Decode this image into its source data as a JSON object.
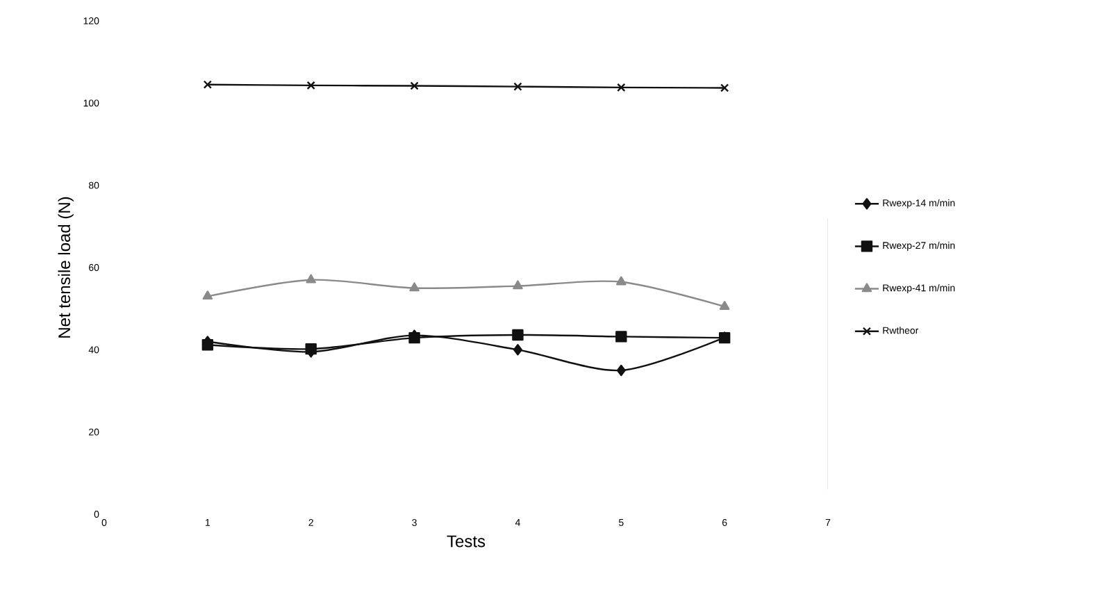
{
  "chart_data": {
    "type": "line",
    "xlabel": "Tests",
    "ylabel": "Net tensile load (N)",
    "x": [
      1,
      2,
      3,
      4,
      5,
      6
    ],
    "xlim": [
      0,
      7
    ],
    "xticks": [
      0,
      1,
      2,
      3,
      4,
      5,
      6,
      7
    ],
    "ylim": [
      0,
      120
    ],
    "yticks": [
      0,
      20,
      40,
      60,
      80,
      100,
      120
    ],
    "series": [
      {
        "name": "Rwexp-14 m/min",
        "color": "#111111",
        "marker": "diamond",
        "values": [
          42,
          39.5,
          43.5,
          40,
          35,
          43
        ]
      },
      {
        "name": "Rwexp-27 m/min",
        "color": "#111111",
        "marker": "square",
        "values": [
          41.2,
          40.2,
          42.9,
          43.6,
          43.2,
          42.9
        ]
      },
      {
        "name": "Rwexp-41 m/min",
        "color": "#8a8a8a",
        "marker": "triangle",
        "values": [
          53,
          57,
          55,
          55.5,
          56.5,
          50.5
        ]
      },
      {
        "name": "Rwtheor",
        "color": "#111111",
        "marker": "cross",
        "values": [
          104.5,
          104.3,
          104.2,
          104,
          103.8,
          103.7
        ]
      }
    ],
    "legend": "right",
    "grid": false
  }
}
